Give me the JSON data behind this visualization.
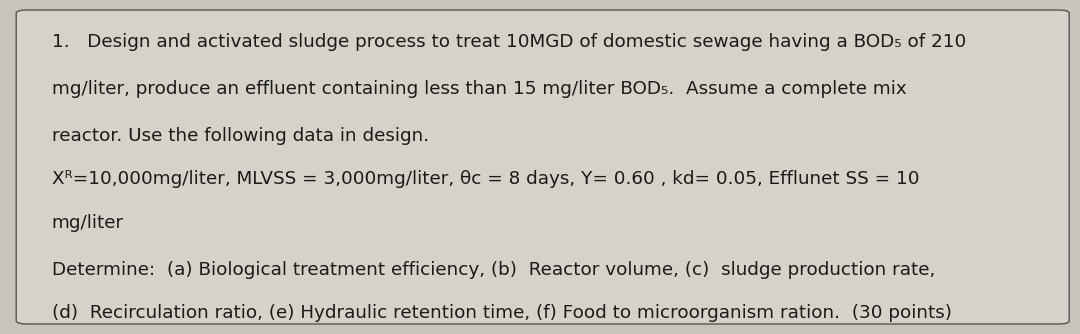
{
  "background_color": "#c8c4bc",
  "box_color": "#d6d2ca",
  "box_edge_color": "#555555",
  "text_color": "#1a1a1a",
  "font_size": 13.2,
  "line1": "1.   Design and activated sludge process to treat 10MGD of domestic sewage having a BOD₅ of 210",
  "line2": "mg/liter, produce an effluent containing less than 15 mg/liter BOD₅.  Assume a complete mix",
  "line3": "reactor. Use the following data in design.",
  "line4": "Xᴿ=10,000mg/liter, MLVSS = 3,000mg/liter, θc = 8 days, Y= 0.60 , kd= 0.05, Efflunet SS = 10",
  "line5": "mg/liter",
  "line6": "Determine:  (a) Biological treatment efficiency, (b)  Reactor volume, (c)  sludge production rate,",
  "line7": "(d)  Recirculation ratio, (e) Hydraulic retention time, (f) Food to microorganism ration.  (30 points)"
}
